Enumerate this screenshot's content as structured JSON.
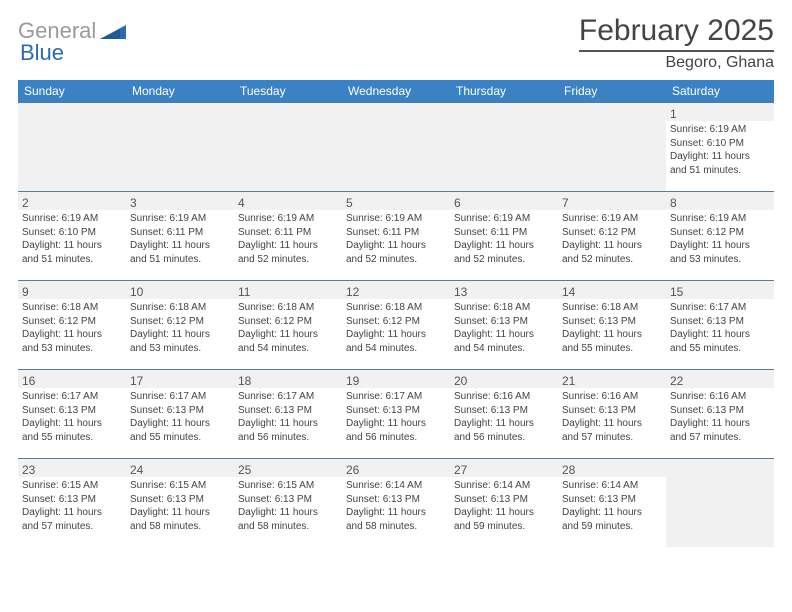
{
  "logo": {
    "gray": "General",
    "blue": "Blue"
  },
  "title": "February 2025",
  "location": "Begoro, Ghana",
  "day_headers": [
    "Sunday",
    "Monday",
    "Tuesday",
    "Wednesday",
    "Thursday",
    "Friday",
    "Saturday"
  ],
  "colors": {
    "header_bg": "#3b82c4",
    "header_text": "#ffffff",
    "row_separator": "#5a7a9a",
    "numrow_bg": "#f1f1f1",
    "text": "#444444",
    "logo_gray": "#9a9a9a",
    "logo_blue": "#2a6bb0"
  },
  "weeks": [
    [
      null,
      null,
      null,
      null,
      null,
      null,
      {
        "n": "1",
        "sunrise": "Sunrise: 6:19 AM",
        "sunset": "Sunset: 6:10 PM",
        "day1": "Daylight: 11 hours",
        "day2": "and 51 minutes."
      }
    ],
    [
      {
        "n": "2",
        "sunrise": "Sunrise: 6:19 AM",
        "sunset": "Sunset: 6:10 PM",
        "day1": "Daylight: 11 hours",
        "day2": "and 51 minutes."
      },
      {
        "n": "3",
        "sunrise": "Sunrise: 6:19 AM",
        "sunset": "Sunset: 6:11 PM",
        "day1": "Daylight: 11 hours",
        "day2": "and 51 minutes."
      },
      {
        "n": "4",
        "sunrise": "Sunrise: 6:19 AM",
        "sunset": "Sunset: 6:11 PM",
        "day1": "Daylight: 11 hours",
        "day2": "and 52 minutes."
      },
      {
        "n": "5",
        "sunrise": "Sunrise: 6:19 AM",
        "sunset": "Sunset: 6:11 PM",
        "day1": "Daylight: 11 hours",
        "day2": "and 52 minutes."
      },
      {
        "n": "6",
        "sunrise": "Sunrise: 6:19 AM",
        "sunset": "Sunset: 6:11 PM",
        "day1": "Daylight: 11 hours",
        "day2": "and 52 minutes."
      },
      {
        "n": "7",
        "sunrise": "Sunrise: 6:19 AM",
        "sunset": "Sunset: 6:12 PM",
        "day1": "Daylight: 11 hours",
        "day2": "and 52 minutes."
      },
      {
        "n": "8",
        "sunrise": "Sunrise: 6:19 AM",
        "sunset": "Sunset: 6:12 PM",
        "day1": "Daylight: 11 hours",
        "day2": "and 53 minutes."
      }
    ],
    [
      {
        "n": "9",
        "sunrise": "Sunrise: 6:18 AM",
        "sunset": "Sunset: 6:12 PM",
        "day1": "Daylight: 11 hours",
        "day2": "and 53 minutes."
      },
      {
        "n": "10",
        "sunrise": "Sunrise: 6:18 AM",
        "sunset": "Sunset: 6:12 PM",
        "day1": "Daylight: 11 hours",
        "day2": "and 53 minutes."
      },
      {
        "n": "11",
        "sunrise": "Sunrise: 6:18 AM",
        "sunset": "Sunset: 6:12 PM",
        "day1": "Daylight: 11 hours",
        "day2": "and 54 minutes."
      },
      {
        "n": "12",
        "sunrise": "Sunrise: 6:18 AM",
        "sunset": "Sunset: 6:12 PM",
        "day1": "Daylight: 11 hours",
        "day2": "and 54 minutes."
      },
      {
        "n": "13",
        "sunrise": "Sunrise: 6:18 AM",
        "sunset": "Sunset: 6:13 PM",
        "day1": "Daylight: 11 hours",
        "day2": "and 54 minutes."
      },
      {
        "n": "14",
        "sunrise": "Sunrise: 6:18 AM",
        "sunset": "Sunset: 6:13 PM",
        "day1": "Daylight: 11 hours",
        "day2": "and 55 minutes."
      },
      {
        "n": "15",
        "sunrise": "Sunrise: 6:17 AM",
        "sunset": "Sunset: 6:13 PM",
        "day1": "Daylight: 11 hours",
        "day2": "and 55 minutes."
      }
    ],
    [
      {
        "n": "16",
        "sunrise": "Sunrise: 6:17 AM",
        "sunset": "Sunset: 6:13 PM",
        "day1": "Daylight: 11 hours",
        "day2": "and 55 minutes."
      },
      {
        "n": "17",
        "sunrise": "Sunrise: 6:17 AM",
        "sunset": "Sunset: 6:13 PM",
        "day1": "Daylight: 11 hours",
        "day2": "and 55 minutes."
      },
      {
        "n": "18",
        "sunrise": "Sunrise: 6:17 AM",
        "sunset": "Sunset: 6:13 PM",
        "day1": "Daylight: 11 hours",
        "day2": "and 56 minutes."
      },
      {
        "n": "19",
        "sunrise": "Sunrise: 6:17 AM",
        "sunset": "Sunset: 6:13 PM",
        "day1": "Daylight: 11 hours",
        "day2": "and 56 minutes."
      },
      {
        "n": "20",
        "sunrise": "Sunrise: 6:16 AM",
        "sunset": "Sunset: 6:13 PM",
        "day1": "Daylight: 11 hours",
        "day2": "and 56 minutes."
      },
      {
        "n": "21",
        "sunrise": "Sunrise: 6:16 AM",
        "sunset": "Sunset: 6:13 PM",
        "day1": "Daylight: 11 hours",
        "day2": "and 57 minutes."
      },
      {
        "n": "22",
        "sunrise": "Sunrise: 6:16 AM",
        "sunset": "Sunset: 6:13 PM",
        "day1": "Daylight: 11 hours",
        "day2": "and 57 minutes."
      }
    ],
    [
      {
        "n": "23",
        "sunrise": "Sunrise: 6:15 AM",
        "sunset": "Sunset: 6:13 PM",
        "day1": "Daylight: 11 hours",
        "day2": "and 57 minutes."
      },
      {
        "n": "24",
        "sunrise": "Sunrise: 6:15 AM",
        "sunset": "Sunset: 6:13 PM",
        "day1": "Daylight: 11 hours",
        "day2": "and 58 minutes."
      },
      {
        "n": "25",
        "sunrise": "Sunrise: 6:15 AM",
        "sunset": "Sunset: 6:13 PM",
        "day1": "Daylight: 11 hours",
        "day2": "and 58 minutes."
      },
      {
        "n": "26",
        "sunrise": "Sunrise: 6:14 AM",
        "sunset": "Sunset: 6:13 PM",
        "day1": "Daylight: 11 hours",
        "day2": "and 58 minutes."
      },
      {
        "n": "27",
        "sunrise": "Sunrise: 6:14 AM",
        "sunset": "Sunset: 6:13 PM",
        "day1": "Daylight: 11 hours",
        "day2": "and 59 minutes."
      },
      {
        "n": "28",
        "sunrise": "Sunrise: 6:14 AM",
        "sunset": "Sunset: 6:13 PM",
        "day1": "Daylight: 11 hours",
        "day2": "and 59 minutes."
      },
      null
    ]
  ]
}
